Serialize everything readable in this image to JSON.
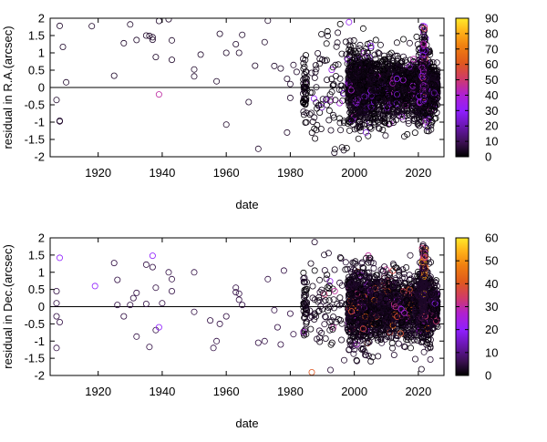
{
  "chart_data": [
    {
      "type": "scatter",
      "xlabel": "date",
      "ylabel": "residual in R.A.(arcsec)",
      "xlim": [
        1905,
        2028
      ],
      "ylim": [
        -2,
        2
      ],
      "xticks": [
        "1920",
        "1940",
        "1960",
        "1980",
        "2000",
        "2020"
      ],
      "yticks": [
        "-2",
        "-1.5",
        "-1",
        "-0.5",
        "0",
        "0.5",
        "1",
        "1.5",
        "2"
      ],
      "zero_line": true,
      "colorbar": {
        "min": 0,
        "max": 90,
        "ticks": [
          "0",
          "10",
          "20",
          "30",
          "40",
          "50",
          "60",
          "70",
          "80",
          "90"
        ]
      },
      "points": [
        [
          1908,
          1.78,
          5
        ],
        [
          1909,
          1.17,
          5
        ],
        [
          1910,
          0.15,
          5
        ],
        [
          1907,
          -0.36,
          5
        ],
        [
          1908,
          -0.96,
          5
        ],
        [
          1908,
          -0.98,
          5
        ],
        [
          1918,
          1.77,
          5
        ],
        [
          1925,
          0.34,
          5
        ],
        [
          1928,
          1.28,
          5
        ],
        [
          1930,
          1.82,
          5
        ],
        [
          1932,
          1.37,
          5
        ],
        [
          1935,
          1.5,
          5
        ],
        [
          1936,
          1.49,
          5
        ],
        [
          1937,
          1.38,
          5
        ],
        [
          1937,
          1.45,
          5
        ],
        [
          1938,
          0.88,
          5
        ],
        [
          1939,
          -0.2,
          45
        ],
        [
          1939,
          1.92,
          5
        ],
        [
          1942,
          1.97,
          5
        ],
        [
          1943,
          1.36,
          5
        ],
        [
          1943,
          0.8,
          5
        ],
        [
          1950,
          0.52,
          5
        ],
        [
          1950,
          0.32,
          5
        ],
        [
          1952,
          0.95,
          5
        ],
        [
          1957,
          0.18,
          5
        ],
        [
          1958,
          1.55,
          5
        ],
        [
          1960,
          1.0,
          5
        ],
        [
          1960,
          -1.07,
          5
        ],
        [
          1963,
          1.25,
          5
        ],
        [
          1964,
          1.0,
          5
        ],
        [
          1965,
          1.52,
          5
        ],
        [
          1967,
          -0.42,
          5
        ],
        [
          1969,
          0.63,
          5
        ],
        [
          1970,
          -1.77,
          5
        ],
        [
          1972,
          1.31,
          5
        ],
        [
          1973,
          1.93,
          5
        ],
        [
          1975,
          0.62,
          5
        ],
        [
          1977,
          0.55,
          5
        ],
        [
          1979,
          0.25,
          5
        ],
        [
          1979,
          -1.3,
          5
        ],
        [
          1980,
          0.1,
          5
        ],
        [
          1980,
          -0.3,
          5
        ],
        [
          1981,
          0.65,
          5
        ],
        [
          1982,
          0.45,
          5
        ]
      ]
    },
    {
      "type": "scatter",
      "xlabel": "date",
      "ylabel": "residual in Dec.(arcsec)",
      "xlim": [
        1905,
        2028
      ],
      "ylim": [
        -2,
        2
      ],
      "xticks": [
        "1920",
        "1940",
        "1960",
        "1980",
        "2000",
        "2020"
      ],
      "yticks": [
        "-2",
        "-1.5",
        "-1",
        "-0.5",
        "0",
        "0.5",
        "1",
        "1.5",
        "2"
      ],
      "zero_line": true,
      "colorbar": {
        "min": 0,
        "max": 60,
        "ticks": [
          "0",
          "10",
          "20",
          "30",
          "40",
          "50",
          "60"
        ]
      },
      "points": [
        [
          1908,
          1.42,
          20
        ],
        [
          1907,
          0.45,
          5
        ],
        [
          1907,
          0.1,
          5
        ],
        [
          1907,
          -0.28,
          5
        ],
        [
          1908,
          -0.45,
          5
        ],
        [
          1907,
          -1.2,
          5
        ],
        [
          1919,
          0.6,
          20
        ],
        [
          1925,
          1.27,
          5
        ],
        [
          1926,
          0.78,
          5
        ],
        [
          1926,
          0.05,
          5
        ],
        [
          1928,
          -0.28,
          5
        ],
        [
          1930,
          0.05,
          5
        ],
        [
          1931,
          0.25,
          5
        ],
        [
          1932,
          0.4,
          5
        ],
        [
          1932,
          -0.87,
          5
        ],
        [
          1935,
          1.22,
          5
        ],
        [
          1935,
          0.08,
          5
        ],
        [
          1936,
          -1.17,
          5
        ],
        [
          1937,
          1.48,
          20
        ],
        [
          1937,
          1.15,
          5
        ],
        [
          1938,
          -0.68,
          5
        ],
        [
          1938,
          0.55,
          5
        ],
        [
          1939,
          -0.6,
          20
        ],
        [
          1940,
          0.1,
          5
        ],
        [
          1942,
          1.0,
          5
        ],
        [
          1943,
          0.8,
          5
        ],
        [
          1943,
          0.45,
          5
        ],
        [
          1950,
          1.0,
          5
        ],
        [
          1950,
          -0.15,
          5
        ],
        [
          1955,
          -0.4,
          5
        ],
        [
          1956,
          -1.2,
          5
        ],
        [
          1957,
          -1.0,
          5
        ],
        [
          1958,
          -0.5,
          5
        ],
        [
          1960,
          -0.28,
          5
        ],
        [
          1963,
          0.55,
          5
        ],
        [
          1963,
          0.42,
          5
        ],
        [
          1964,
          0.2,
          5
        ],
        [
          1964,
          0.38,
          5
        ],
        [
          1965,
          0.05,
          5
        ],
        [
          1970,
          -1.05,
          5
        ],
        [
          1972,
          -1.0,
          5
        ],
        [
          1973,
          0.8,
          5
        ],
        [
          1975,
          -0.1,
          5
        ],
        [
          1976,
          -0.6,
          5
        ],
        [
          1977,
          -1.1,
          5
        ],
        [
          1978,
          1.05,
          5
        ],
        [
          1980,
          -0.2,
          5
        ],
        [
          1981,
          -0.8,
          5
        ]
      ]
    }
  ]
}
